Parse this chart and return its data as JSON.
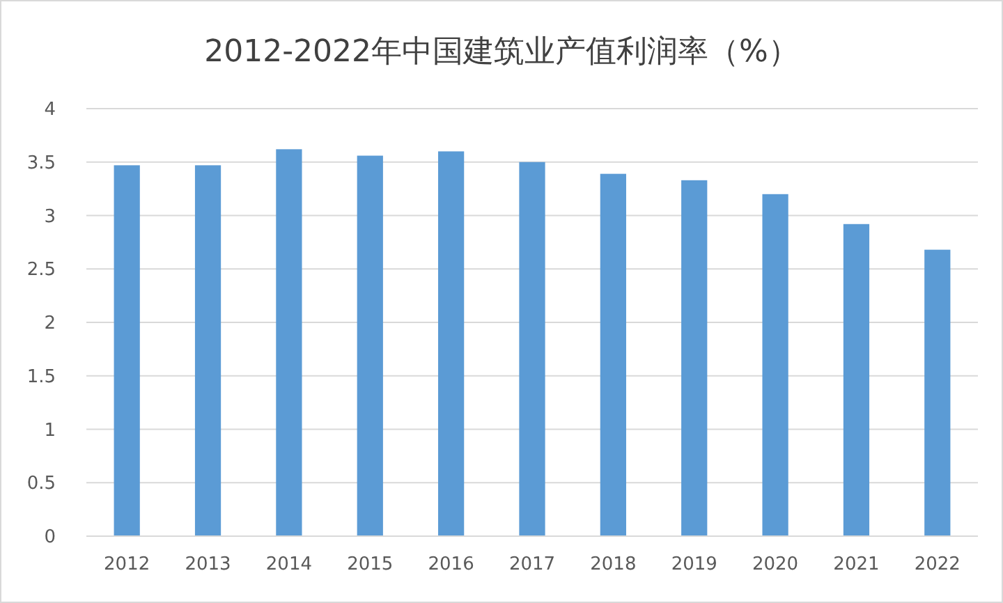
{
  "chart_data": {
    "type": "bar",
    "title": "2012-2022年中国建筑业产值利润率（%）",
    "categories": [
      "2012",
      "2013",
      "2014",
      "2015",
      "2016",
      "2017",
      "2018",
      "2019",
      "2020",
      "2021",
      "2022"
    ],
    "values": [
      3.47,
      3.47,
      3.62,
      3.56,
      3.6,
      3.5,
      3.39,
      3.33,
      3.2,
      2.92,
      2.68
    ],
    "color": "#5b9bd5",
    "ylim": [
      0,
      4
    ],
    "yticks": [
      0,
      0.5,
      1,
      1.5,
      2,
      2.5,
      3,
      3.5,
      4
    ],
    "grid": "y"
  }
}
